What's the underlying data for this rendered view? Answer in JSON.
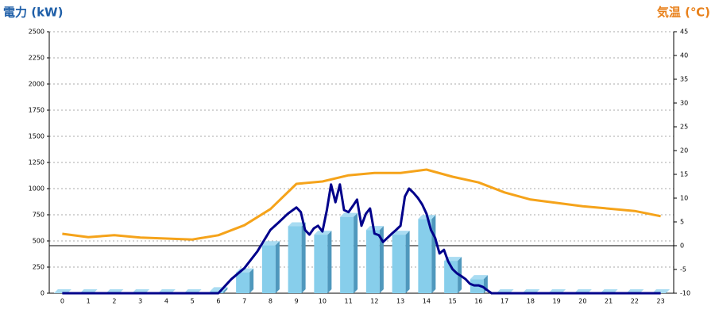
{
  "chart_data": {
    "type": "bar",
    "y_axis_title": "電力 (kW)",
    "y2_axis_title": "気温 (℃)",
    "categories": [
      "0",
      "1",
      "2",
      "3",
      "4",
      "5",
      "6",
      "7",
      "8",
      "9",
      "10",
      "11",
      "12",
      "13",
      "14",
      "15",
      "16",
      "17",
      "18",
      "19",
      "20",
      "21",
      "22",
      "23"
    ],
    "ylim": [
      0,
      2500
    ],
    "yticks": [
      0,
      250,
      500,
      750,
      1000,
      1250,
      1500,
      1750,
      2000,
      2250,
      2500
    ],
    "y2lim": [
      -10,
      45
    ],
    "y2ticks": [
      -10,
      -5,
      0,
      5,
      10,
      15,
      20,
      25,
      30,
      35,
      40,
      45
    ],
    "grid": true,
    "series": [
      {
        "type": "bar",
        "color": "#87ceeb",
        "values": [
          0,
          0,
          0,
          0,
          0,
          0,
          20,
          200,
          460,
          640,
          560,
          730,
          605,
          560,
          710,
          310,
          135,
          0,
          0,
          0,
          0,
          0,
          0,
          0
        ]
      },
      {
        "type": "line",
        "color": "#00008b",
        "x": [
          0,
          1,
          2,
          3,
          4,
          5,
          6,
          6.5,
          7,
          7.5,
          8,
          8.33,
          8.67,
          9,
          9.17,
          9.33,
          9.5,
          9.67,
          9.83,
          10,
          10.17,
          10.33,
          10.5,
          10.67,
          10.83,
          11,
          11.17,
          11.33,
          11.5,
          11.67,
          11.83,
          12,
          12.17,
          12.33,
          12.5,
          12.67,
          12.83,
          13,
          13.17,
          13.33,
          13.5,
          13.67,
          13.83,
          14,
          14.17,
          14.33,
          14.5,
          14.67,
          14.83,
          15,
          15.17,
          15.33,
          15.5,
          15.67,
          15.83,
          16,
          16.17,
          16.33,
          16.5,
          17,
          18,
          19,
          20,
          21,
          22,
          23
        ],
        "values": [
          0,
          0,
          0,
          0,
          0,
          0,
          0,
          135,
          240,
          400,
          605,
          680,
          760,
          820,
          775,
          605,
          560,
          620,
          645,
          590,
          795,
          1040,
          870,
          1040,
          795,
          775,
          835,
          895,
          645,
          760,
          810,
          570,
          555,
          490,
          530,
          570,
          605,
          645,
          925,
          1000,
          960,
          910,
          850,
          760,
          605,
          530,
          380,
          415,
          305,
          230,
          190,
          165,
          135,
          90,
          75,
          75,
          60,
          30,
          0,
          0,
          0,
          0,
          0,
          0,
          0,
          0
        ]
      },
      {
        "type": "line",
        "axis": "y2",
        "color": "#f5a31a",
        "values": [
          2.5,
          1.8,
          2.2,
          1.7,
          1.5,
          1.3,
          2.2,
          4.3,
          7.7,
          13,
          13.5,
          14.8,
          15.3,
          15.3,
          16,
          14.5,
          13.3,
          11.2,
          9.7,
          9,
          8.3,
          7.8,
          7.3,
          6.2
        ]
      }
    ]
  }
}
